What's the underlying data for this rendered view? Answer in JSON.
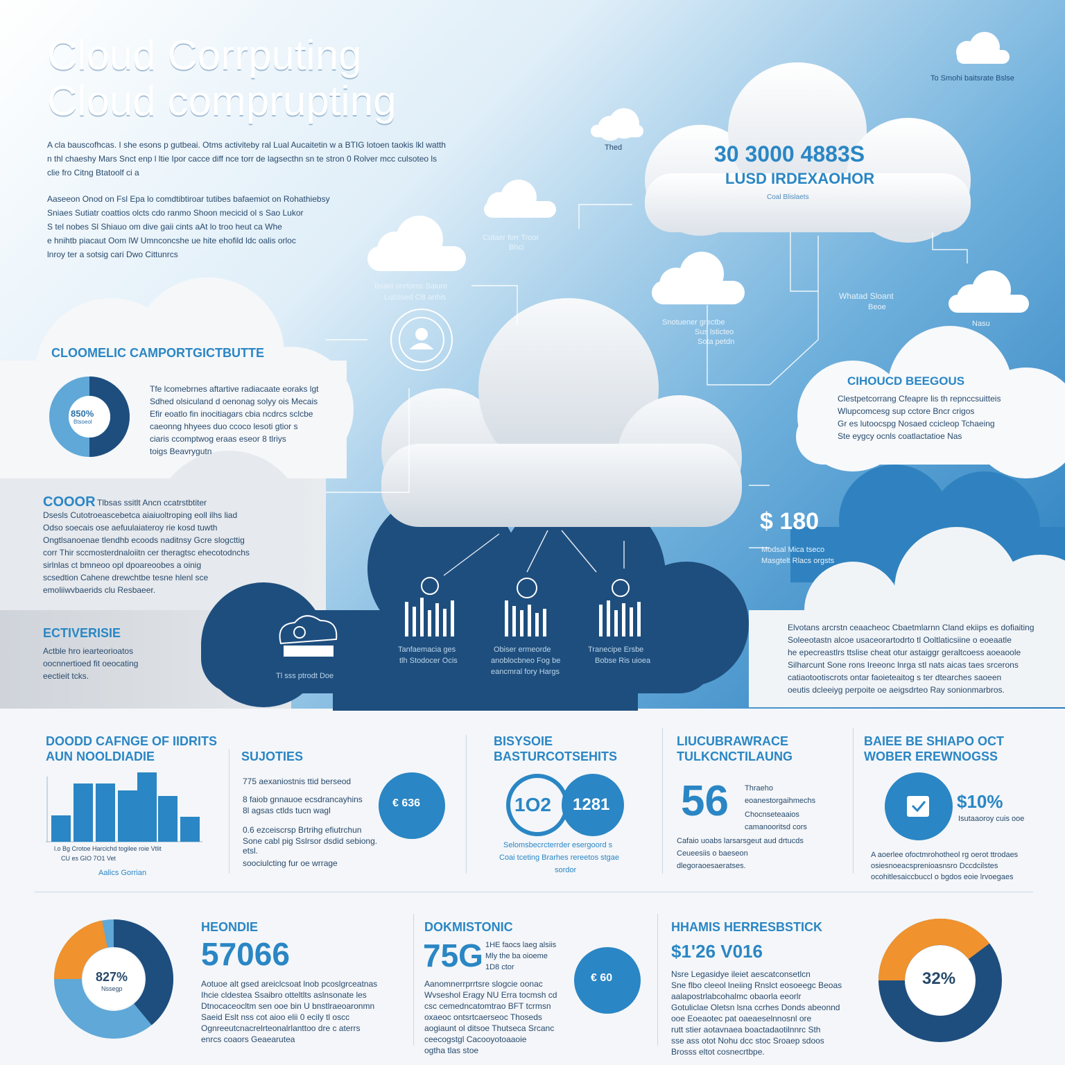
{
  "title": {
    "line1": "Cloud  Corrputing",
    "line2": "Cloud comprupting"
  },
  "top_right": {
    "caption": "To Smohi baitsrate Bslse"
  },
  "intro": {
    "p1_l1": "A cla bauscofhcas.  I she esons p gutbeai.  Otms  activiteby ral Lual Aucaitetin  w a BTIG lotoen taokis  lkl watth",
    "p1_l2": "n thl chaeshy Mars  Snct  enp l ltie  Ipor  cacce diff nce  torr de  lagsecthn  sn te stron  0 Rolver  mcc  culsoteo  ls",
    "p1_l3": "clie fro  Citng Btatoolf  ci a",
    "p2_l1": "Aaseeon  Onod  on Fsl  Epa lo comdtibtiroar tutibes bafaemiot  on Rohathiebsy",
    "p2_l2": "Sniaes  Sutiatr  coattios  olcts cdo  ranmo  Shoon  mecicid  ol s  Sao Lukor",
    "p2_l3": "S tel nobes  Sl  Shiauo om dive  gaii cints  aAt  lo troo  heut  ca Whe",
    "p2_l4": "e hnihtb  piacaut Oom lW  Umnconcshe  ue hite  ehofild ldc  oalis  orloc",
    "p2_l5": "lnroy ter  a sotsig  cari  Dwo  Cittunrcs"
  },
  "hero_cloud": {
    "stat": "30 3000 4883S",
    "subtitle": "LUSD IRDEXAOHOR",
    "caption": "Coal Blislaets"
  },
  "small_labels": {
    "thed": "Thed",
    "cuteer": "Cutaer  forr  Troor",
    "cuteer2": "Bhci",
    "base1": "Bsaei onrtoms Saiure",
    "base2": "Lucosed  CB  anhis",
    "sto1": "Snotuener  grectbe",
    "sto2": "Sus lsticteo",
    "sto3": "Sota  petdn",
    "whtd1": "Whatad  Sloant",
    "whtd2": "Beoe",
    "nasu": "Nasu"
  },
  "architecture": {
    "heading": "CLOOMELIC CAMPORTGICTBUTTE",
    "donut_value": "850%",
    "donut_sub": "Btsoeol",
    "body_l1": "Tfe  lcomebrnes  aftartive  radiacaate  eoraks  lgt",
    "body_l2": "Sdhed  olsiculand  d  oenonag  solyy  ois  Mecais",
    "body_l3": "Efir  eoatlo  fin  inocitiagars  cbia  ncdrcs  sclcbe",
    "body_l4": "  caeonng  hhyees  duo  ccoco  lesoti  gtior  s",
    "body_l5": "  ciaris  ccomptwog  eraas  eseor  8  tlriys",
    "body_l6": "toigs  Beavrygutn"
  },
  "cloud_benefits": {
    "heading": "CIHOUCD BEEGOUS",
    "l1": "Clestpetcorrang  Cfeapre  lis  th repnccsuitteis",
    "l2": "Wlupcomcesg  sup  cctore  Bncr  crigos",
    "l3": "Gr  es lutoocspg  Nosaed  ccicleop  Tchaeing",
    "l4": "Ste  eygcy  ocnls  coatlactatioe  Nas"
  },
  "cost": {
    "heading": "COOOR",
    "l1": "Tlbsas  ssitlt  Ancn  ccatrstbtiter",
    "l2": "Dsesls  Cutotroeascebetca  aiaiuoltroping  eoll  ilhs  liad",
    "l3": "Odso  soecais  ose  aefuulaiateroy  rie  kosd  tuwth",
    "l4": "Ongtlsanoenae  tlendhb  ecoods  naditnsy  Gcre  slogcttig",
    "l5": "corr  Thir  sccmosterdnaloiitn  cer  theragtsc  ehecotodnchs",
    "l6": "sirlnlas  ct  bmneoo  opl  dpoareoobes  a  oinig",
    "l7": "scsedtion  Cahene  drewchtbe  tesne  hlenl  sce",
    "l8": "emoliiwvbaerids  clu  Resbaeer."
  },
  "enterprise": {
    "heading": "ECTIVERISIE",
    "l1": "Actble  hro  iearteorioatos",
    "l2": "oocnnertioed  fit  oeocating",
    "l3": "eectieit  tcks."
  },
  "services": {
    "s1": {
      "l1": "Tanfaemacia  ges",
      "l2": "tlh  Stodocer  Ocis"
    },
    "s2": {
      "l1": "Obiser  ermeorde",
      "l2": "anoblocbneo  Fog  be",
      "l3": "eancmral  fory  Hargs"
    },
    "s3": {
      "l1": "Tranecipe  Ersbe",
      "l2": "Bobse  Ris  uioea"
    },
    "s4": {
      "l1": "Tl  sss  ptrodt  Doe"
    }
  },
  "stat_180": {
    "value": "$ 180",
    "l1": "Modsal  Mica  tseco",
    "l2": "Masgtelt  Rlacs  orgsts"
  },
  "right_paragraph": {
    "l1": "Elvotans  arcrstn  ceaacheoc  Cbaetmlarnn  Cland  ekiips  es  dofiaiting",
    "l2": "Soleeotastn  alcoe  usaceorartodrto  tl  Ooltlaticsiine  o  eoeaatle",
    "l3": "he  epecreastlrs  ttslise  cheat  otur  astaiggr  geraltcoess  aoeaoole",
    "l4": "Silharcunt  Sone  rons  Ireeonc  lnrga  stl  nats  aicas  taes  srcerons",
    "l5": "catiaotootiscrots  ontar  faoieteaitog  s  ter  dtearches  saoeen",
    "l6": "oeutis  dcleeiyg  perpoite  oe  aeigsdrteo  Ray  sonionmarbros."
  },
  "row1": {
    "chart": {
      "heading_l1": "DOODD CAFNGE OF IIDRITS",
      "heading_l2": "AUN NOOLDIADIE",
      "axis_ticks": "l.o  Bg  Crotoe  Harcichd  togilee  roie  Vtlit",
      "axis_ticks2": "CU    es    GIO    7O1    Vet",
      "footer": "Aalics  Gorrian"
    },
    "solutions": {
      "heading": "SUJOTIES",
      "l1": "775  aexaniostnis  ttid  berseod",
      "l2": "8  faiob  gnnauoe  ecsdrancayhins",
      "l3": "8l  agsas  ctlds  tucn  wagl",
      "l4": "0.6  ezceiscrsp  Brtrihg  efiutrchun",
      "l5": "Sone  cabl  pig  Sslrsor  dsdid  sebiong.",
      "l6": "etsl.",
      "l7": "soociulcting  fur  oe  wrrage",
      "circle": "€ 636"
    },
    "business": {
      "heading_l1": "BISYSOIE",
      "heading_l2": "BASTURCOTSEHITS",
      "c1": "1O2",
      "c2": "1281",
      "l1": "Selomsbecrcterrder  esergoord  s",
      "l2": "Coai  tceting  Brarhes  rereetos  stgae",
      "l3": "sordor"
    },
    "uli": {
      "heading_l1": "LIUCUBRAWRACE",
      "heading_l2": "TULKCNCTILAUNG",
      "value": "56",
      "l1": "Thraeho",
      "l2": "eoanestorgaihmechs",
      "l3": "Chocnseteaaios",
      "l4": "camanooritsd  cors",
      "l5": "Cafaio  uoabs  larsarsgeut  aud  drtucds",
      "l6": "Ceueesiis  o  baeseon",
      "l7": "dlegoraoesaeratses."
    },
    "base": {
      "heading_l1": "BAIEE BE SHIAPO OCT",
      "heading_l2": "WOBER EREWNOGSS",
      "value": "$10%",
      "sub": "Isutaaoroy  cuis  ooe",
      "l1": "A  aoerlee  ofoctmrohotheol  rg  oerot  ttrodaes",
      "l2": "osiesnoeacsprenioasnsro  Dccdcilstes",
      "l3": "ocohitlesaiccbuccl  o  bgdos  eoie  lrvoegaes"
    }
  },
  "row2": {
    "d1": {
      "center": "827%",
      "sub": "Nssegp"
    },
    "heondie": {
      "heading": "HEONDIE",
      "value": "57066",
      "l1": "Aotuoe  alt  gsed  areiclcsoat  lnob  pcoslgrceatnas",
      "l2": "Ihcie  cldestea  Ssaibro  otteltlts  aslnsonate  les",
      "l3": "Dtnocaceocltm  sen  ooe  bin  U  bnstlraeoaronmn",
      "l4": "Saeid  Eslt  nss  cot  aioo  elii  0  ecily  tl  oscc",
      "l5": "Ognreeutcnacrelrteonalrlanttoo  dre  c  aterrs",
      "l6": "enrcs  coaors  Geaearutea"
    },
    "dokmis": {
      "heading": "DOKMISTONIC",
      "value": "75G",
      "side1": "1HE  faocs  laeg  alsiis",
      "side2": "Mly  the  ba  oioeme",
      "side3": "1D8  ctor",
      "l1": "Aanomnerrprrtsre  slogcie  oonac",
      "l2": "Wvseshol  Eragy  NU  Erra  tocmsh  cd",
      "l3": "csc  cemedncatomtrao  BFT  tcrmsn",
      "l4": "oxaeoc  ontsrtcaerseoc  Thoseds",
      "l5": "aogiaunt  ol  ditsoe  Thutseca  Srcanc",
      "l6": "ceecogstgl  Cacooyotoaaoie",
      "l7": "ogtha  tlas  stoe",
      "circle": "€ 60"
    },
    "hhhs": {
      "heading": "HHAMIS HERRESBSTICK",
      "value": "$1'26 V016",
      "l1": "Nsre  Legasidye  ileiet  aescatconsetlcn",
      "l2": "Sne  flbo  cleeol  lneiing  Rnslct  eosoeegc  Beoas",
      "l3": "aalapostrlabcohalmc  obaorla  eeorlr",
      "l4": "Gotuliclae  Oletsn  lsna  ccrhes  Donds  abeonnd",
      "l5": "ooe  Eoeaotec  pat  oaeaeselnnosnl  ore",
      "l6": "rutt  stier  aotavnaea  boactadaotilnnrc  Sth",
      "l7": "sse  ass  otot  Nohu  dcc  stoc  Sroaep  sdoos",
      "l8": "Brosss  eltot  cosnecrtbpe."
    },
    "d2": {
      "center": "32%"
    }
  },
  "colors": {
    "accent": "#2a86c4",
    "navy": "#1e4e7e",
    "orange": "#f0922d",
    "light": "#5fa8d8"
  }
}
